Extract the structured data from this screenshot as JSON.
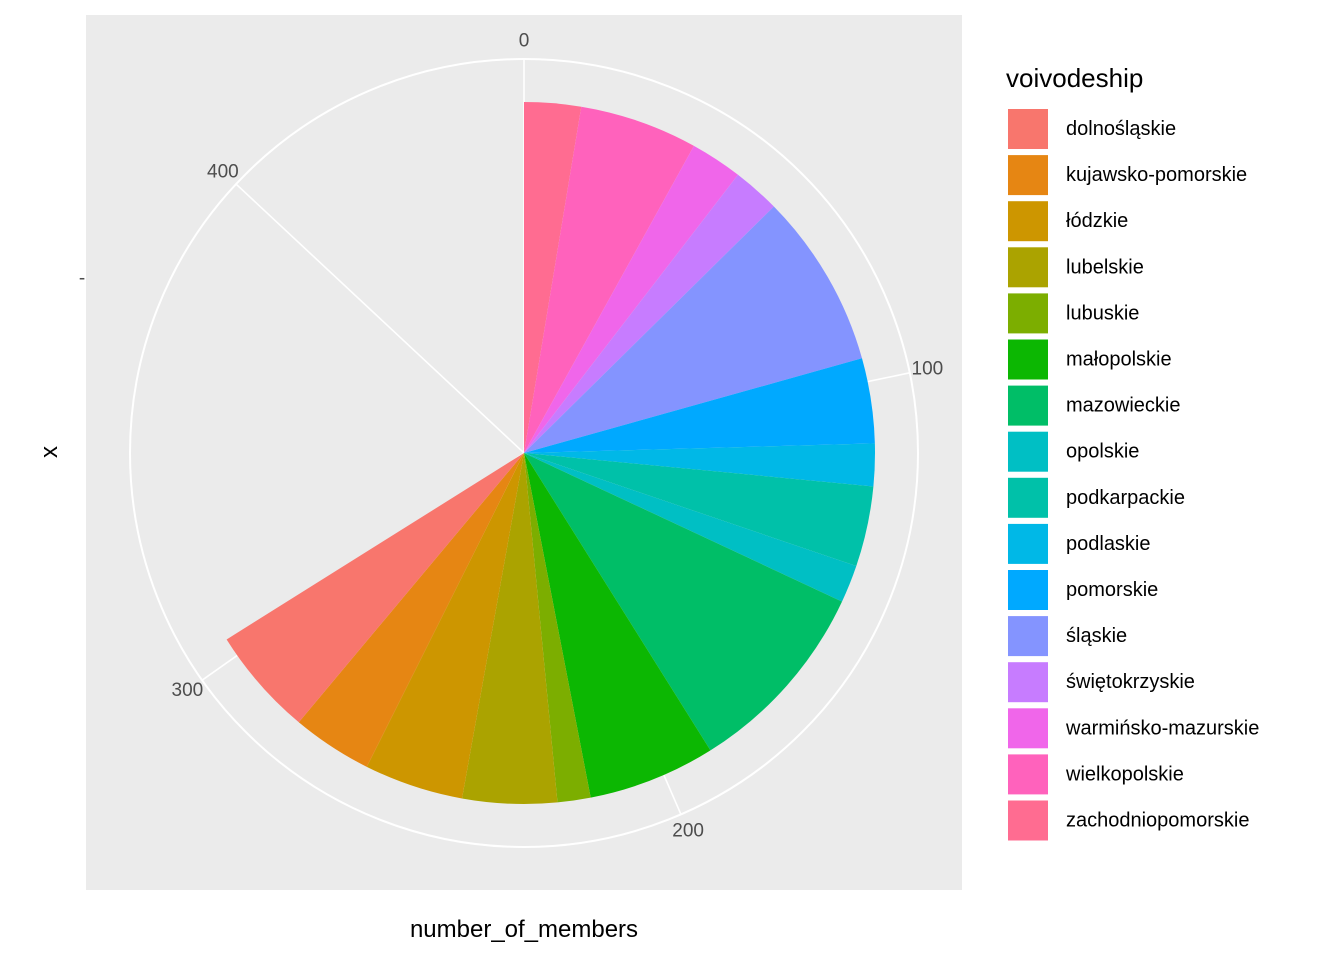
{
  "chart_data": {
    "type": "pie",
    "xlabel": "number_of_members",
    "ylabel": "x",
    "y_tick_label": "-",
    "radial_axis": {
      "range": [
        0,
        460
      ],
      "ticks": [
        "0",
        "100",
        "200",
        "300",
        "400"
      ],
      "tick_values": [
        0,
        100,
        200,
        300,
        400
      ]
    },
    "legend": {
      "title": "voivodeship",
      "position": "right"
    },
    "slices": [
      {
        "name": "zachodniopomorskie",
        "value": 12,
        "color": "#FF6C91"
      },
      {
        "name": "wielkopolskie",
        "value": 25,
        "color": "#FF62BC"
      },
      {
        "name": "warmińsko-mazurskie",
        "value": 11,
        "color": "#F066EA"
      },
      {
        "name": "świętokrzyskie",
        "value": 10,
        "color": "#C77CFF"
      },
      {
        "name": "śląskie",
        "value": 37,
        "color": "#8494FF"
      },
      {
        "name": "pomorskie",
        "value": 18,
        "color": "#00A9FF"
      },
      {
        "name": "podlaskie",
        "value": 9,
        "color": "#00B8E7"
      },
      {
        "name": "podkarpackie",
        "value": 17,
        "color": "#00C1A9"
      },
      {
        "name": "opolskie",
        "value": 8,
        "color": "#00BFC4"
      },
      {
        "name": "mazowieckie",
        "value": 42,
        "color": "#00BE67"
      },
      {
        "name": "małopolskie",
        "value": 27,
        "color": "#0CB702"
      },
      {
        "name": "lubuskie",
        "value": 7,
        "color": "#7CAE00"
      },
      {
        "name": "lubelskie",
        "value": 20,
        "color": "#ABA300"
      },
      {
        "name": "łódzkie",
        "value": 21,
        "color": "#CD9600"
      },
      {
        "name": "kujawsko-pomorskie",
        "value": 17,
        "color": "#E68613"
      },
      {
        "name": "dolnośląskie",
        "value": 23,
        "color": "#F8766D"
      }
    ],
    "legend_order": [
      "dolnośląskie",
      "kujawsko-pomorskie",
      "łódzkie",
      "lubelskie",
      "lubuskie",
      "małopolskie",
      "mazowieckie",
      "opolskie",
      "podkarpackie",
      "podlaskie",
      "pomorskie",
      "śląskie",
      "świętokrzyskie",
      "warmińsko-mazurskie",
      "wielkopolskie",
      "zachodniopomorskie"
    ],
    "panel_background": "#EBEBEB",
    "grid_color": "#FFFFFF"
  }
}
